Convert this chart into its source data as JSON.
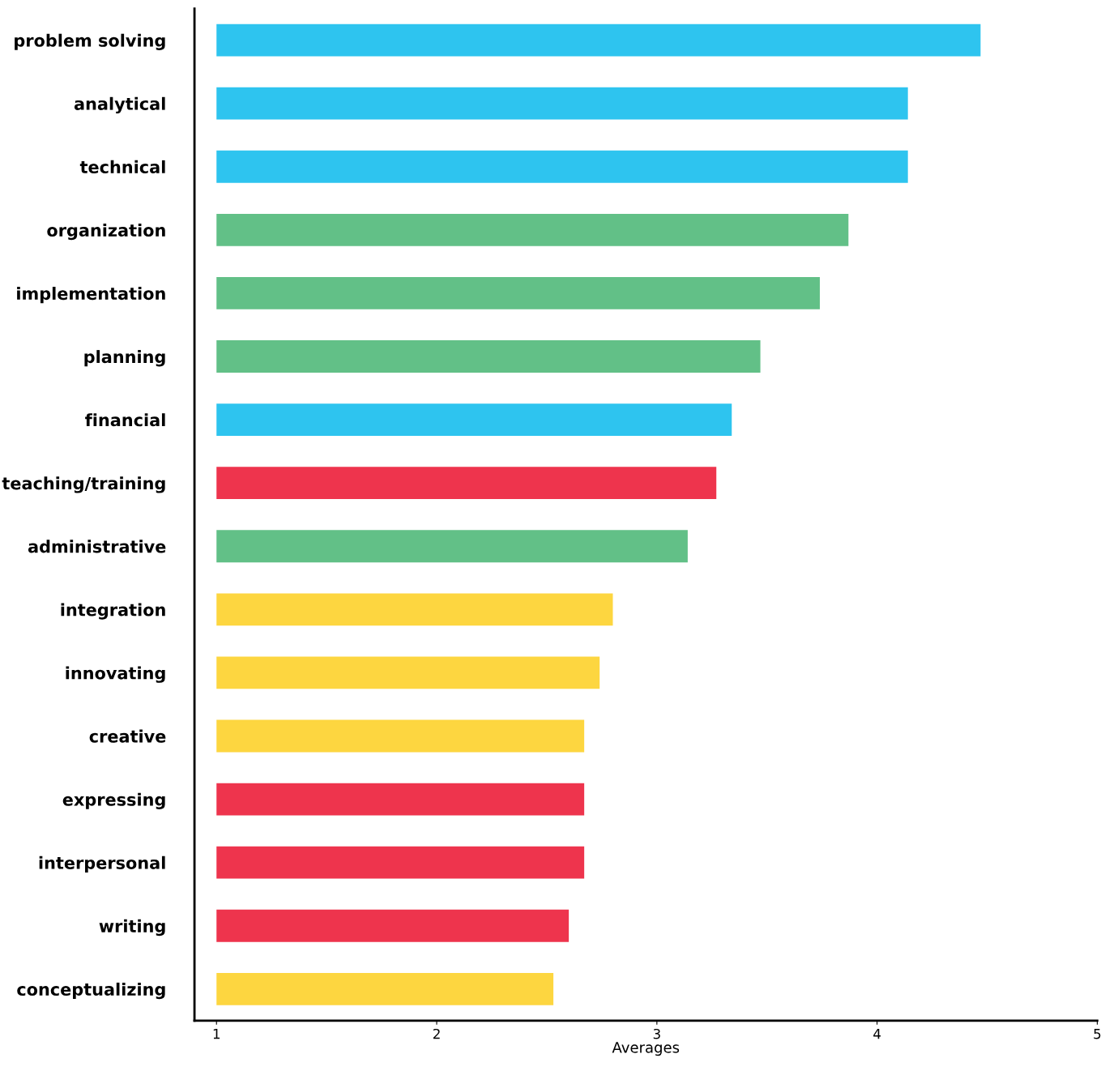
{
  "chart_data": {
    "type": "bar",
    "orientation": "horizontal",
    "xlabel": "Averages",
    "categories": [
      "problem solving",
      "analytical",
      "technical",
      "organization",
      "implementation",
      "planning",
      "financial",
      "teaching/training",
      "administrative",
      "integration",
      "innovating",
      "creative",
      "expressing",
      "interpersonal",
      "writing",
      "conceptualizing"
    ],
    "base": [
      1,
      1,
      1,
      1,
      1,
      1,
      1,
      1,
      1,
      1,
      1,
      1,
      1,
      1,
      1,
      1
    ],
    "values": [
      3.47,
      3.14,
      3.14,
      2.87,
      2.74,
      2.47,
      2.34,
      2.27,
      2.14,
      1.8,
      1.74,
      1.67,
      1.67,
      1.67,
      1.6,
      1.53
    ],
    "colors": [
      "#2ec4ef",
      "#2ec4ef",
      "#2ec4ef",
      "#62c087",
      "#62c087",
      "#62c087",
      "#2ec4ef",
      "#ee344d",
      "#62c087",
      "#fdd640",
      "#fdd640",
      "#fdd640",
      "#ee344d",
      "#ee344d",
      "#ee344d",
      "#fdd640"
    ],
    "xlim": [
      0.9,
      5
    ],
    "xticks": [
      1,
      2,
      3,
      4,
      5
    ],
    "grid": false,
    "legend": false
  }
}
